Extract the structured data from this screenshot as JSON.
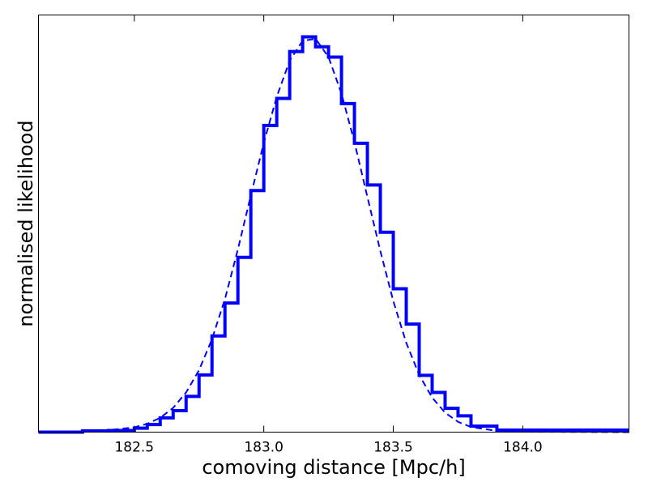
{
  "chart_data": {
    "type": "line",
    "title": "",
    "xlabel": "comoving distance [Mpc/h]",
    "ylabel": "normalised likelihood",
    "xlim": [
      182.13,
      184.41
    ],
    "ylim": [
      0,
      1.05
    ],
    "x_ticks": [
      182.5,
      183.0,
      183.5,
      184.0
    ],
    "x_tick_labels": [
      "182.5",
      "183.0",
      "183.5",
      "184.0"
    ],
    "y_ticks_shown": false,
    "grid": false,
    "legend": "none",
    "series": [
      {
        "style": "histogram-step",
        "color": "#0000ff",
        "bin_edges": [
          182.13,
          182.3,
          182.4,
          182.5,
          182.55,
          182.6,
          182.65,
          182.7,
          182.75,
          182.8,
          182.85,
          182.9,
          182.95,
          183.0,
          183.05,
          183.1,
          183.15,
          183.2,
          183.25,
          183.3,
          183.35,
          183.4,
          183.45,
          183.5,
          183.55,
          183.6,
          183.65,
          183.7,
          183.75,
          183.8,
          183.9,
          184.41
        ],
        "values": [
          0.0,
          0.003,
          0.004,
          0.01,
          0.019,
          0.036,
          0.054,
          0.09,
          0.144,
          0.242,
          0.325,
          0.44,
          0.608,
          0.772,
          0.84,
          0.958,
          0.995,
          0.97,
          0.944,
          0.827,
          0.727,
          0.622,
          0.503,
          0.361,
          0.272,
          0.143,
          0.1,
          0.06,
          0.041,
          0.015,
          0.005
        ],
        "tail_value": 0.002
      },
      {
        "style": "dashed",
        "color": "#0000ff",
        "x": [
          182.13,
          182.3,
          182.4,
          182.5,
          182.55,
          182.6,
          182.65,
          182.7,
          182.75,
          182.8,
          182.85,
          182.9,
          182.95,
          183.0,
          183.05,
          183.1,
          183.15,
          183.2,
          183.25,
          183.3,
          183.35,
          183.4,
          183.45,
          183.5,
          183.55,
          183.6,
          183.65,
          183.7,
          183.75,
          183.8,
          183.9,
          184.0,
          184.41
        ],
        "y": [
          0.0,
          0.002,
          0.005,
          0.012,
          0.021,
          0.036,
          0.061,
          0.1,
          0.156,
          0.234,
          0.335,
          0.46,
          0.596,
          0.728,
          0.844,
          0.935,
          0.985,
          0.99,
          0.944,
          0.852,
          0.73,
          0.592,
          0.456,
          0.33,
          0.225,
          0.144,
          0.087,
          0.049,
          0.026,
          0.013,
          0.003,
          0.001,
          0.0
        ]
      }
    ]
  }
}
